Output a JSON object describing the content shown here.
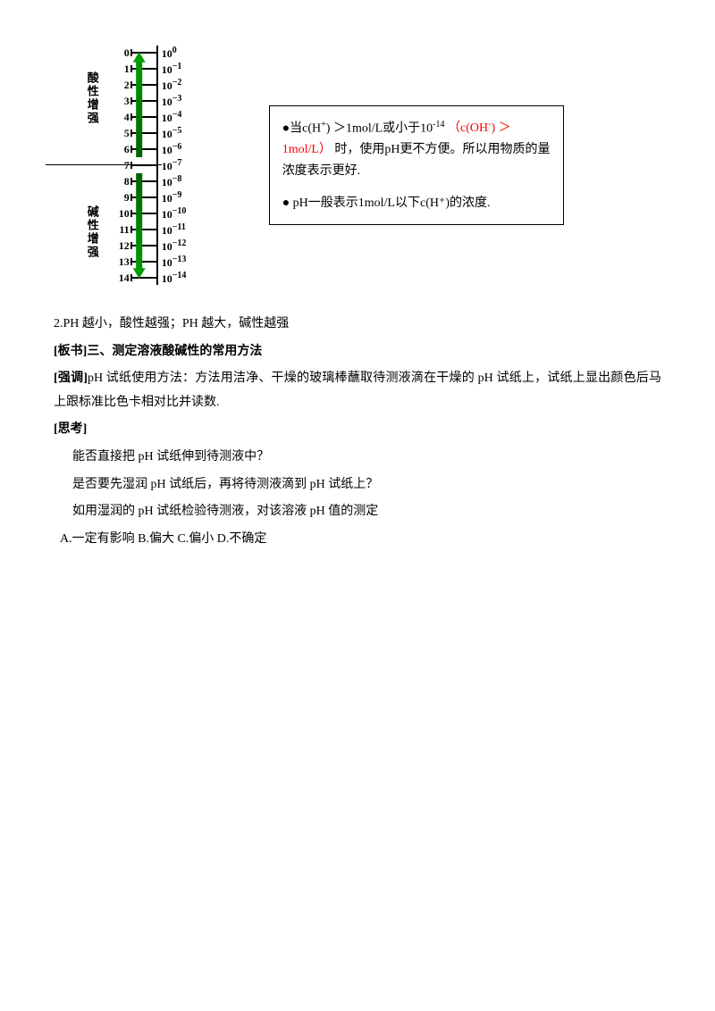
{
  "diagram": {
    "label_top": "酸性增强",
    "label_bottom": "碱性增强",
    "rows": [
      {
        "n": "0",
        "c": "10",
        "e": "0"
      },
      {
        "n": "1",
        "c": "10",
        "e": "−1"
      },
      {
        "n": "2",
        "c": "10",
        "e": "−2"
      },
      {
        "n": "3",
        "c": "10",
        "e": "−3"
      },
      {
        "n": "4",
        "c": "10",
        "e": "−4"
      },
      {
        "n": "5",
        "c": "10",
        "e": "−5"
      },
      {
        "n": "6",
        "c": "10",
        "e": "−6"
      },
      {
        "n": "7",
        "c": "10",
        "e": "−7"
      },
      {
        "n": "8",
        "c": "10",
        "e": "−8"
      },
      {
        "n": "9",
        "c": "10",
        "e": "−9"
      },
      {
        "n": "10",
        "c": "10",
        "e": "−10"
      },
      {
        "n": "11",
        "c": "10",
        "e": "−11"
      },
      {
        "n": "12",
        "c": "10",
        "e": "−12"
      },
      {
        "n": "13",
        "c": "10",
        "e": "−13"
      },
      {
        "n": "14",
        "c": "10",
        "e": "−14"
      }
    ]
  },
  "notebox": {
    "line1_a": "●当c(H",
    "line1_b": ") ＞1mol/L或小于10",
    "line1_exp": "-14",
    "line1_red_a": "（c(OH",
    "line1_red_b": ") ＞1mol/L）",
    "line1_c": "时，使用pH更不方便。所以用物质的量浓度表示更好.",
    "line2": "● pH一般表示1mol/L以下c(H⁺)的浓度."
  },
  "body": {
    "p1": "2.PH 越小，酸性越强；PH 越大，碱性越强",
    "h1": "[板书]三、测定溶液酸碱性的常用方法",
    "p2a": "[强调]",
    "p2b": "pH 试纸使用方法：方法用洁净、干燥的玻璃棒蘸取待测液滴在干燥的 pH 试纸上，试纸上显出颜色后马上跟标准比色卡相对比并读数.",
    "h2": "[思考]",
    "q1": "能否直接把 pH 试纸伸到待测液中？",
    "q2": "是否要先湿润 pH 试纸后，再将待测液滴到 pH 试纸上？",
    "q3": "如用湿润的 pH 试纸检验待测液，对该溶液 pH 值的测定",
    "opts": "A.一定有影响   B.偏大   C.偏小    D.不确定"
  }
}
